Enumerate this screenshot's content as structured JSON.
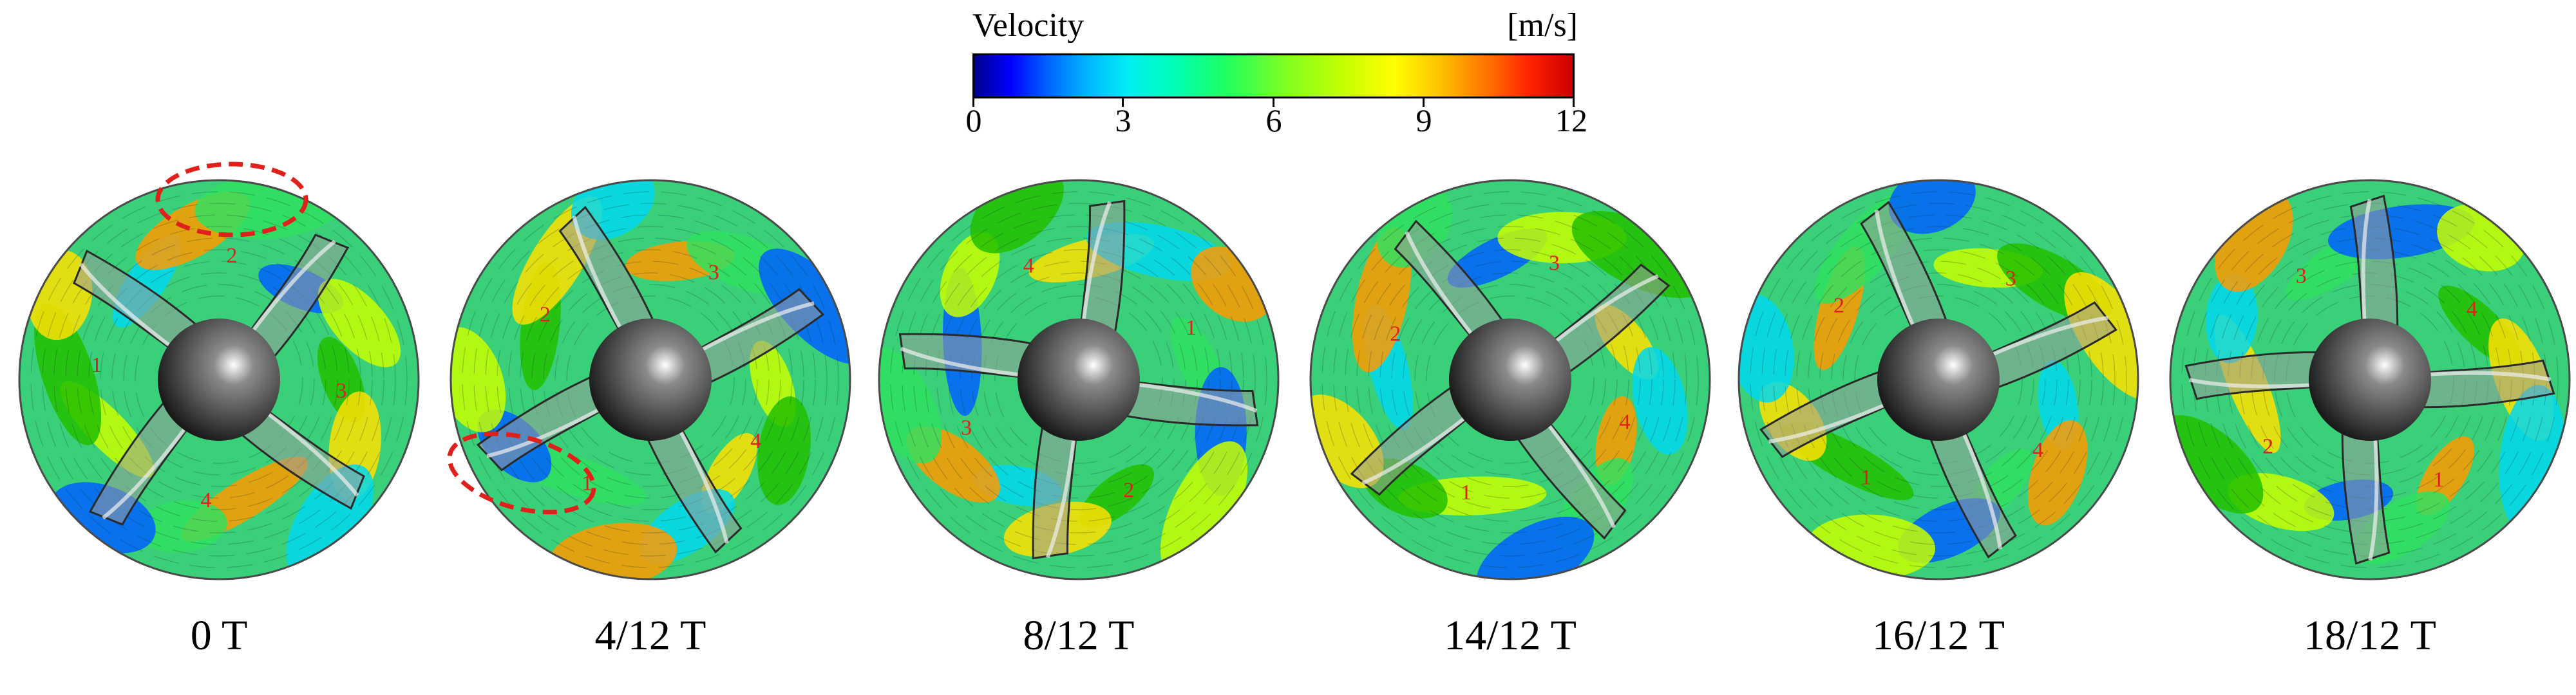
{
  "legend": {
    "title": "Velocity",
    "unit": "[m/s]",
    "ticks": [
      "0",
      "3",
      "6",
      "9",
      "12"
    ],
    "range": [
      0,
      12
    ],
    "colormap": [
      "#00008b",
      "#0000ff",
      "#00b8ff",
      "#00f0f0",
      "#20ff60",
      "#c8ff00",
      "#ffff00",
      "#ff7000",
      "#cc0000"
    ]
  },
  "panels": [
    {
      "caption": "0 T",
      "blades": [
        "1",
        "2",
        "3",
        "4"
      ],
      "highlight": true
    },
    {
      "caption": "4/12 T",
      "blades": [
        "2",
        "3",
        "4",
        "1"
      ],
      "highlight": true
    },
    {
      "caption": "8/12 T",
      "blades": [
        "4",
        "1",
        "2",
        "3"
      ],
      "highlight": false
    },
    {
      "caption": "14/12 T",
      "blades": [
        "2",
        "3",
        "4",
        "1"
      ],
      "highlight": false
    },
    {
      "caption": "16/12 T",
      "blades": [
        "2",
        "3",
        "4",
        "1"
      ],
      "highlight": false
    },
    {
      "caption": "18/12 T",
      "blades": [
        "3",
        "4",
        "1",
        "2"
      ],
      "highlight": false
    }
  ],
  "colors": {
    "highlight": "#e0201a",
    "blade_label": "#e0201a",
    "hub": "#1a1a1a"
  }
}
